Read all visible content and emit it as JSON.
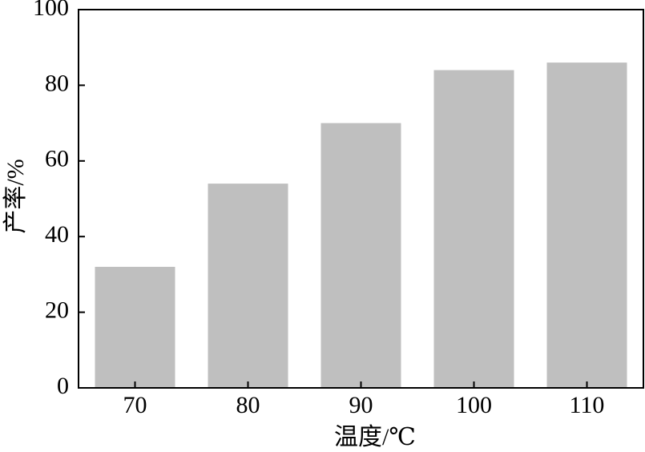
{
  "chart_data": {
    "type": "bar",
    "x_label": "温度/℃",
    "y_label": "产率/%",
    "categories": [
      "70",
      "80",
      "90",
      "100",
      "110"
    ],
    "values": [
      32,
      54,
      70,
      84,
      86
    ],
    "color": "#bfbfbf",
    "ylim": [
      0,
      100
    ],
    "yticks": [
      0,
      20,
      40,
      60,
      80,
      100
    ]
  }
}
